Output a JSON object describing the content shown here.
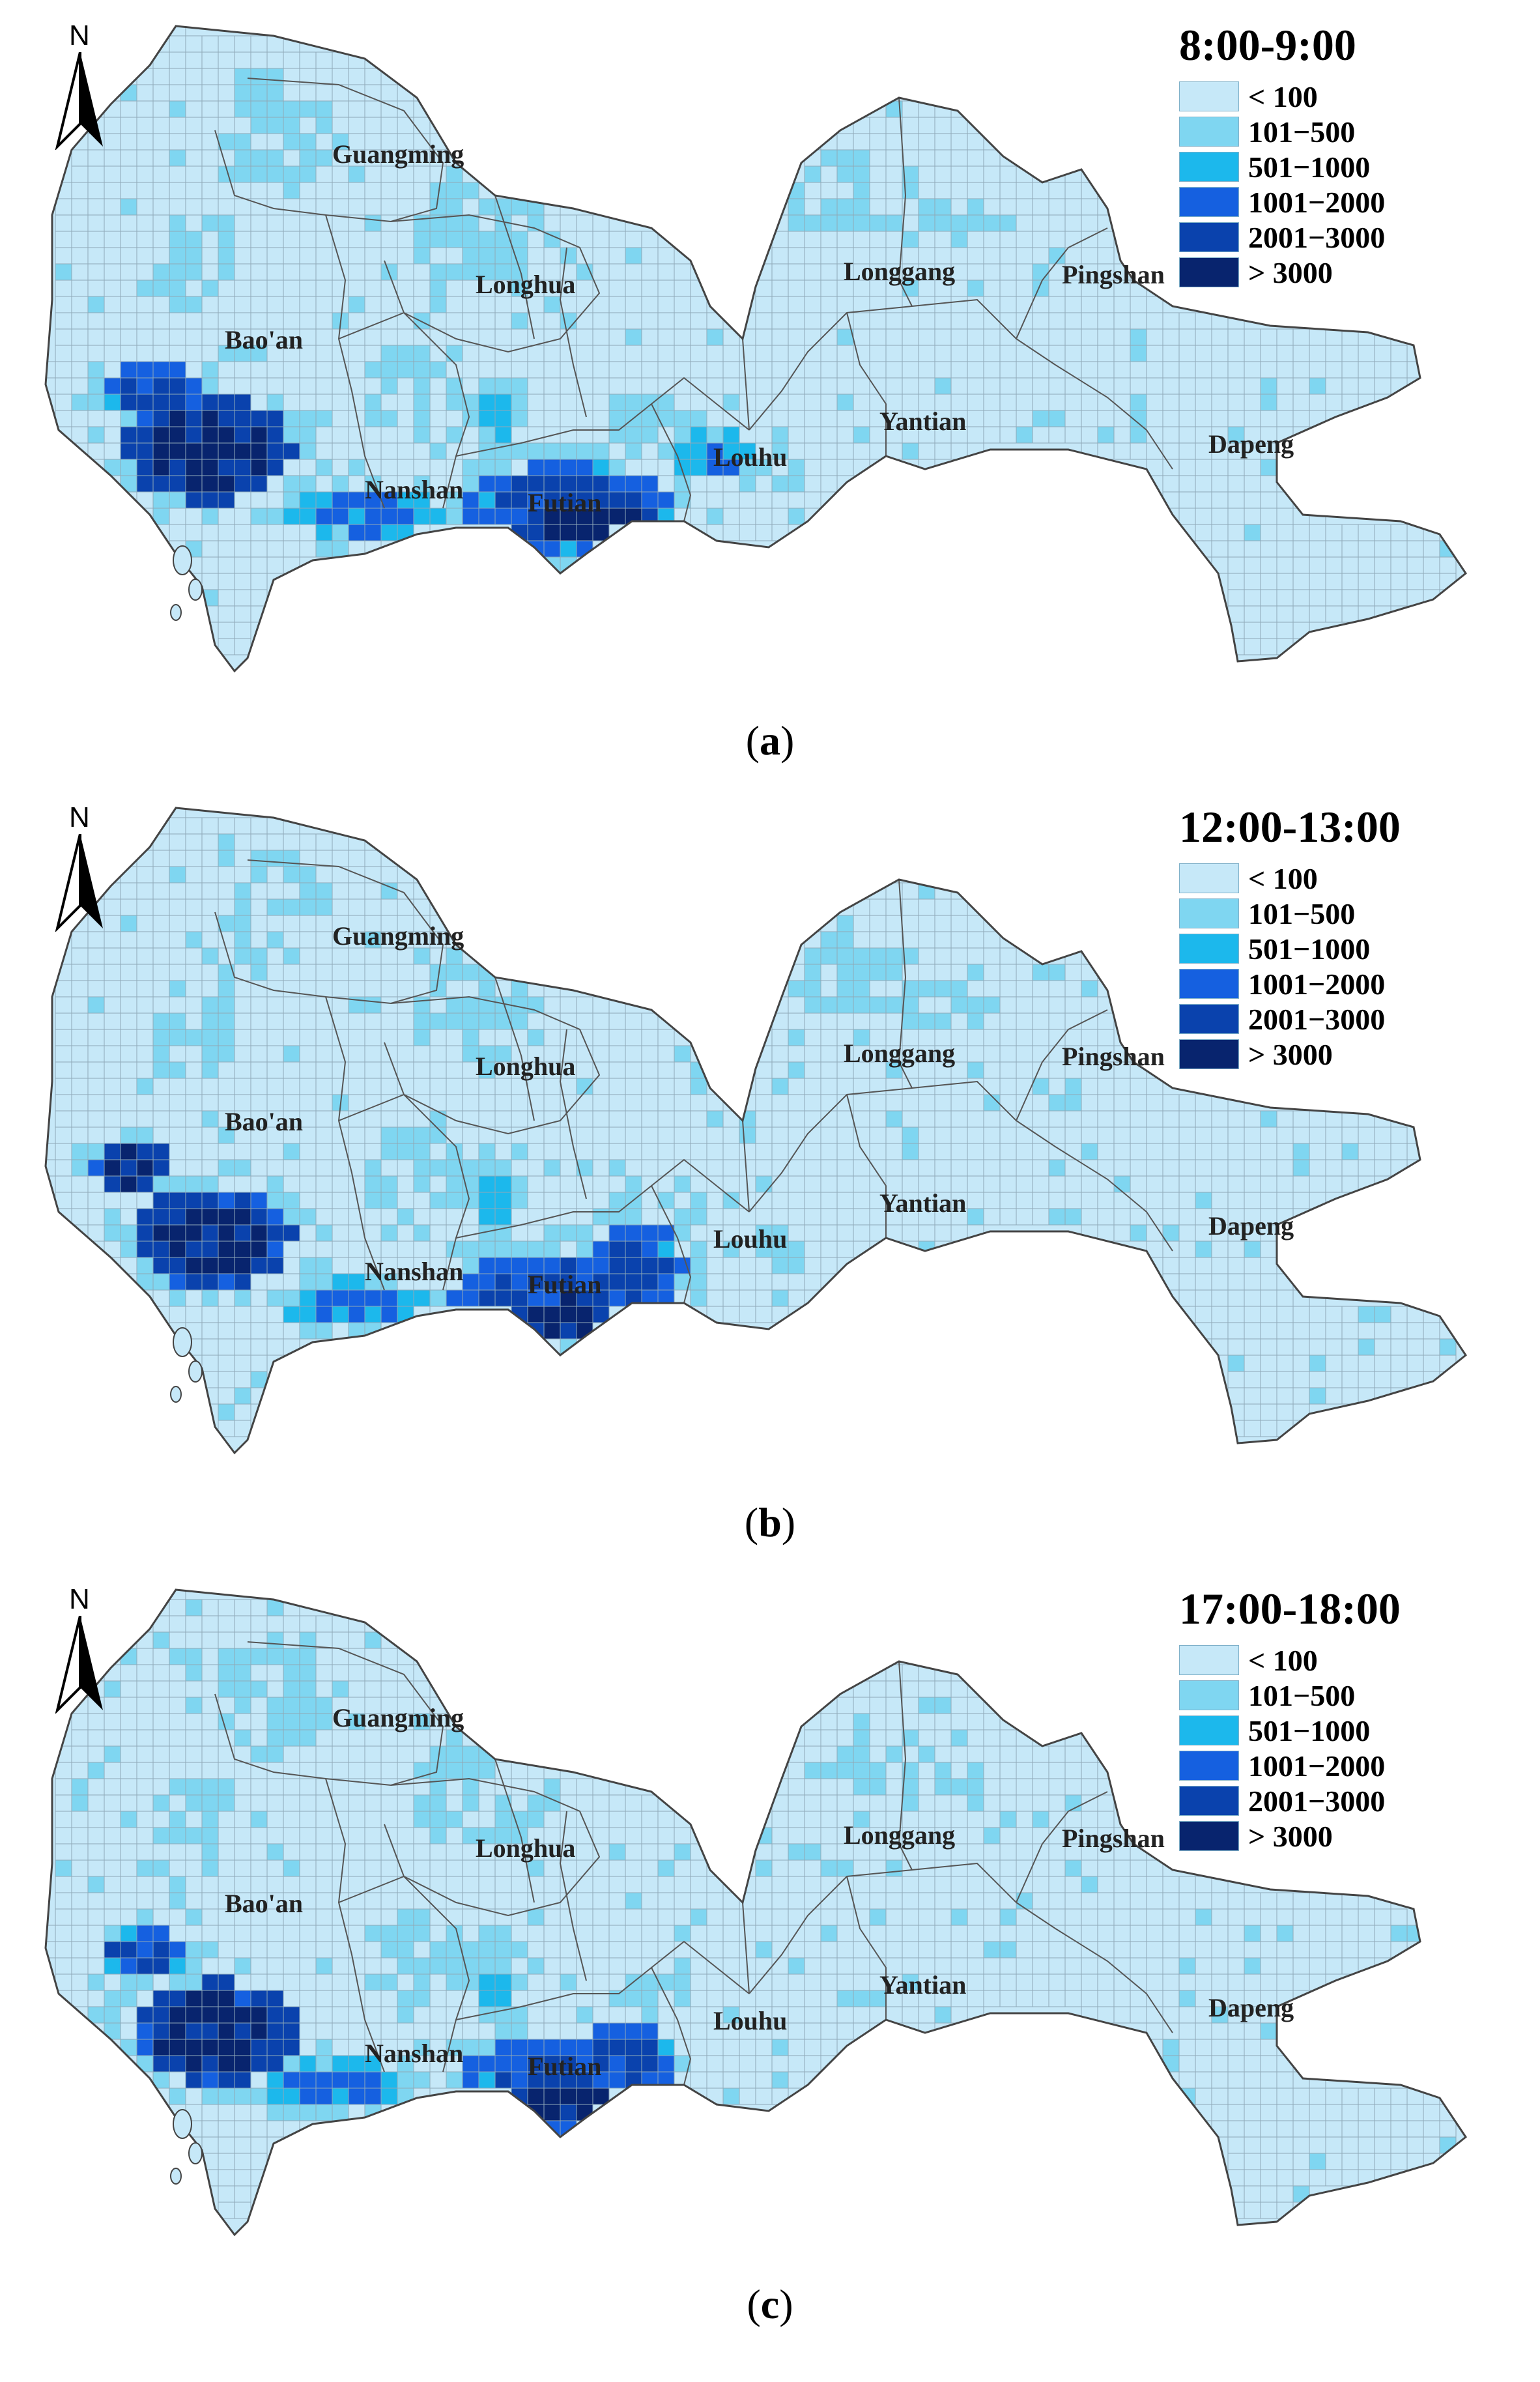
{
  "legend_classes": [
    {
      "label": "< 100",
      "color": "#c6e8f8"
    },
    {
      "label": "101−500",
      "color": "#7fd6f1"
    },
    {
      "label": "501−1000",
      "color": "#1cb8ec"
    },
    {
      "label": "1001−2000",
      "color": "#1560e0"
    },
    {
      "label": "2001−3000",
      "color": "#0a42ad"
    },
    {
      "label": "> 3000",
      "color": "#08246e"
    }
  ],
  "north_label": "N",
  "districts": [
    "Guangming",
    "Longhua",
    "Bao'an",
    "Nanshan",
    "Futian",
    "Louhu",
    "Longgang",
    "Yantian",
    "Pingshan",
    "Dapeng"
  ],
  "panels": [
    {
      "id": "a",
      "time_label": "8:00-9:00",
      "caption_letter": "a"
    },
    {
      "id": "b",
      "time_label": "12:00-13:00",
      "caption_letter": "b"
    },
    {
      "id": "c",
      "time_label": "17:00-18:00",
      "caption_letter": "c"
    }
  ]
}
